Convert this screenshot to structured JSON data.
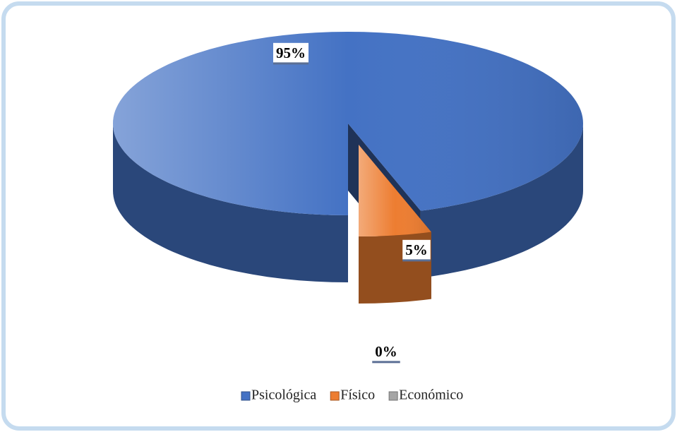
{
  "chart_data": {
    "type": "pie3d",
    "categories": [
      "Psicológica",
      "Físico",
      "Económico"
    ],
    "values": [
      95,
      5,
      0
    ],
    "value_labels": [
      "95%",
      "5%",
      "0%"
    ],
    "colors": [
      "#4472c4",
      "#ed7d31",
      "#a5a5a5"
    ],
    "legend": "bottom"
  }
}
